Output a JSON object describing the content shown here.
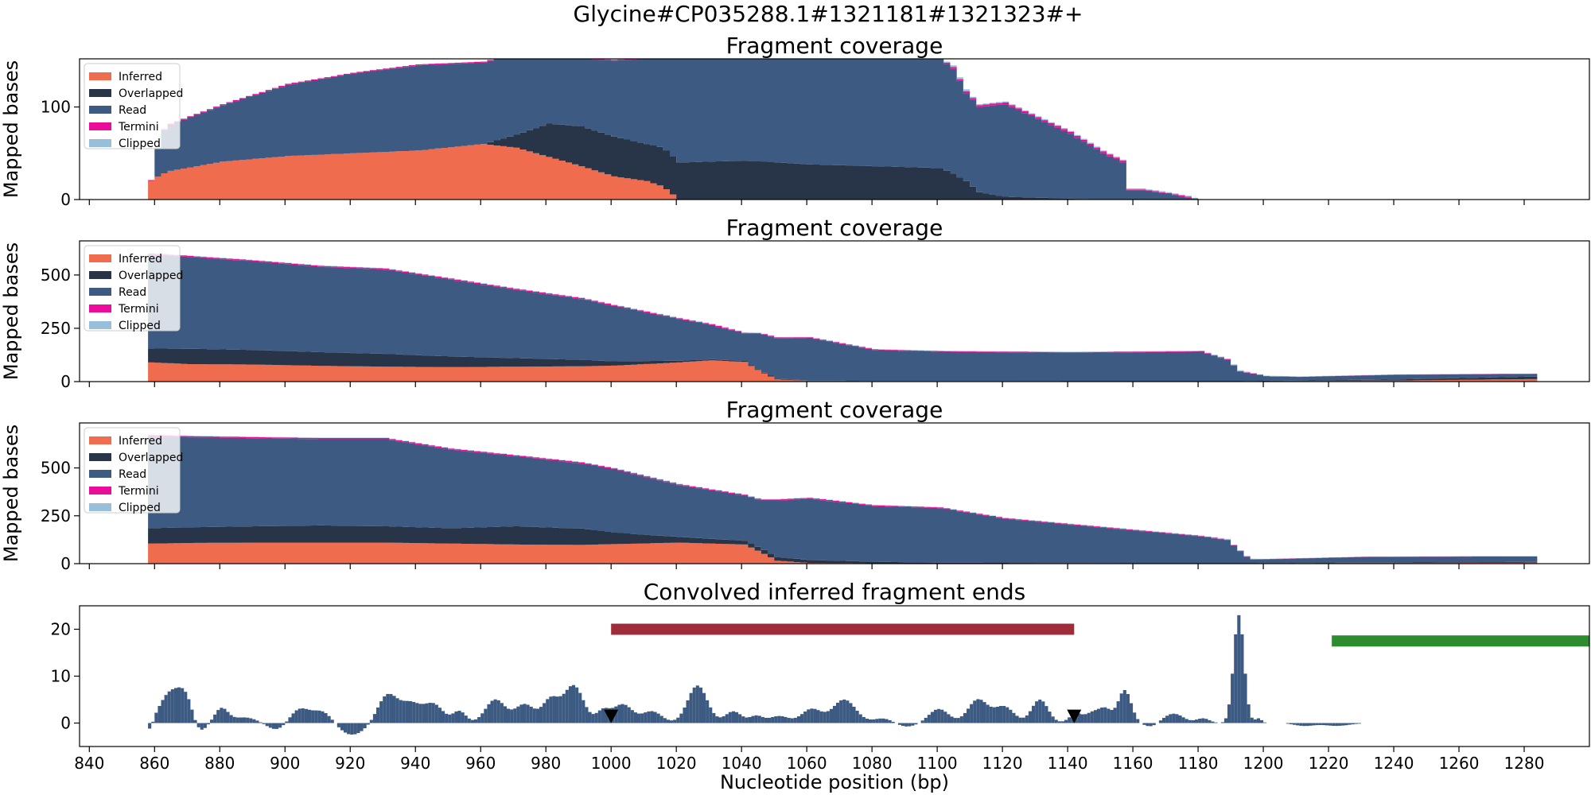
{
  "suptitle": "Glycine#CP035288.1#1321181#1321323#+",
  "colors": {
    "inferred": "#ef6c4f",
    "overlapped": "#283447",
    "read": "#3d5b82",
    "termini": "#ec0c9c",
    "clipped": "#98bfda",
    "convolved": "#3d5b82",
    "red_bar": "#a02c3a",
    "green_bar": "#2e8b2e",
    "marker": "#000000"
  },
  "chart_data": [
    {
      "type": "area",
      "title": "Fragment coverage",
      "xlabel": "",
      "ylabel": "Mapped bases",
      "xlim": [
        837,
        1300
      ],
      "ylim": [
        0,
        152
      ],
      "yticks": [
        "0",
        "100"
      ],
      "legend": {
        "position": "top-left",
        "entries": [
          "Inferred",
          "Overlapped",
          "Read",
          "Termini",
          "Clipped"
        ]
      },
      "x": [
        858,
        861,
        864,
        880,
        900,
        920,
        940,
        960,
        970,
        980,
        990,
        1000,
        1010,
        1015,
        1020,
        1040,
        1060,
        1080,
        1100,
        1104,
        1108,
        1112,
        1120,
        1130,
        1140,
        1150,
        1156,
        1158,
        1162,
        1170,
        1176,
        1180
      ],
      "series": [
        {
          "name": "Inferred",
          "values": [
            20,
            27,
            31,
            41,
            47,
            50,
            53,
            60,
            56,
            46,
            36,
            25,
            20,
            14,
            0,
            0,
            0,
            0,
            0,
            0,
            0,
            0,
            0,
            0,
            0,
            0,
            0,
            0,
            0,
            0,
            0,
            0
          ]
        },
        {
          "name": "Overlapped",
          "values": [
            0,
            0,
            0,
            0,
            0,
            0,
            0,
            0,
            14,
            36,
            43,
            43,
            40,
            42,
            40,
            42,
            38,
            36,
            34,
            28,
            20,
            8,
            3,
            2,
            1,
            0,
            0,
            0,
            0,
            0,
            0,
            0
          ]
        },
        {
          "name": "Read",
          "values": [
            0,
            45,
            50,
            61,
            77,
            86,
            92,
            88,
            87,
            70,
            73,
            82,
            92,
            98,
            112,
            112,
            116,
            118,
            118,
            113,
            95,
            92,
            100,
            85,
            70,
            50,
            40,
            10,
            10,
            6,
            2,
            0
          ]
        },
        {
          "name": "Termini",
          "values": [
            1,
            1,
            1,
            1,
            1,
            1,
            1,
            1,
            1,
            1,
            1,
            1,
            1,
            1,
            1,
            1,
            1,
            1,
            1,
            2,
            2,
            2,
            2,
            2,
            2,
            2,
            2,
            1,
            1,
            1,
            1,
            0
          ]
        },
        {
          "name": "Clipped",
          "values": [
            0,
            0,
            0,
            0,
            0,
            0,
            0,
            0,
            0,
            0,
            0,
            0,
            0,
            0,
            0,
            0,
            0,
            0,
            0,
            2,
            2,
            1,
            1,
            1,
            1,
            1,
            1,
            1,
            1,
            1,
            1,
            0
          ]
        }
      ]
    },
    {
      "type": "area",
      "title": "Fragment coverage",
      "xlabel": "",
      "ylabel": "Mapped bases",
      "xlim": [
        837,
        1300
      ],
      "ylim": [
        0,
        660
      ],
      "yticks": [
        "0",
        "250",
        "500"
      ],
      "legend": {
        "position": "top-left",
        "entries": [
          "Inferred",
          "Overlapped",
          "Read",
          "Termini",
          "Clipped"
        ]
      },
      "x": [
        858,
        870,
        890,
        910,
        930,
        950,
        970,
        990,
        1000,
        1020,
        1030,
        1040,
        1045,
        1050,
        1060,
        1080,
        1100,
        1140,
        1180,
        1188,
        1192,
        1200,
        1210,
        1240,
        1270,
        1284
      ],
      "series": [
        {
          "name": "Inferred",
          "values": [
            90,
            82,
            80,
            74,
            70,
            68,
            70,
            72,
            75,
            90,
            100,
            92,
            45,
            10,
            3,
            2,
            2,
            1,
            1,
            1,
            1,
            2,
            3,
            5,
            10,
            12
          ]
        },
        {
          "name": "Overlapped",
          "values": [
            65,
            72,
            68,
            64,
            60,
            50,
            40,
            30,
            20,
            8,
            5,
            5,
            4,
            4,
            2,
            1,
            1,
            1,
            1,
            1,
            1,
            2,
            2,
            5,
            10,
            12
          ]
        },
        {
          "name": "Read",
          "values": [
            440,
            430,
            415,
            400,
            395,
            360,
            320,
            285,
            260,
            195,
            160,
            128,
            175,
            190,
            200,
            145,
            137,
            133,
            138,
            100,
            45,
            20,
            17,
            22,
            15,
            13
          ]
        },
        {
          "name": "Termini",
          "values": [
            5,
            5,
            5,
            5,
            5,
            5,
            5,
            5,
            4,
            4,
            4,
            4,
            3,
            3,
            3,
            3,
            3,
            3,
            3,
            3,
            2,
            2,
            1,
            1,
            1,
            0
          ]
        },
        {
          "name": "Clipped",
          "values": [
            2,
            2,
            2,
            2,
            2,
            2,
            2,
            2,
            2,
            2,
            2,
            2,
            2,
            2,
            2,
            2,
            2,
            2,
            2,
            3,
            4,
            2,
            1,
            1,
            1,
            0
          ]
        }
      ]
    },
    {
      "type": "area",
      "title": "Fragment coverage",
      "xlabel": "",
      "ylabel": "Mapped bases",
      "xlim": [
        837,
        1300
      ],
      "ylim": [
        0,
        735
      ],
      "yticks": [
        "0",
        "250",
        "500"
      ],
      "legend": {
        "position": "top-left",
        "entries": [
          "Inferred",
          "Overlapped",
          "Read",
          "Termini",
          "Clipped"
        ]
      },
      "x": [
        858,
        870,
        890,
        910,
        930,
        950,
        970,
        990,
        1000,
        1020,
        1040,
        1045,
        1050,
        1060,
        1080,
        1100,
        1120,
        1140,
        1160,
        1180,
        1188,
        1195,
        1200,
        1230,
        1260,
        1284
      ],
      "series": [
        {
          "name": "Inferred",
          "values": [
            105,
            108,
            110,
            110,
            110,
            105,
            100,
            98,
            102,
            110,
            100,
            60,
            15,
            4,
            2,
            2,
            2,
            1,
            1,
            1,
            1,
            1,
            2,
            3,
            4,
            5
          ]
        },
        {
          "name": "Overlapped",
          "values": [
            80,
            82,
            85,
            90,
            85,
            80,
            95,
            85,
            60,
            30,
            20,
            20,
            20,
            15,
            8,
            3,
            2,
            2,
            1,
            1,
            1,
            1,
            1,
            2,
            3,
            5
          ]
        },
        {
          "name": "Read",
          "values": [
            480,
            470,
            460,
            450,
            455,
            410,
            365,
            340,
            330,
            270,
            235,
            250,
            295,
            320,
            290,
            285,
            230,
            200,
            170,
            140,
            120,
            20,
            20,
            30,
            30,
            28
          ]
        },
        {
          "name": "Termini",
          "values": [
            6,
            6,
            6,
            6,
            6,
            6,
            6,
            6,
            6,
            5,
            5,
            5,
            5,
            5,
            5,
            4,
            4,
            4,
            4,
            3,
            3,
            2,
            1,
            1,
            1,
            0
          ]
        },
        {
          "name": "Clipped",
          "values": [
            2,
            2,
            2,
            2,
            2,
            2,
            2,
            2,
            2,
            2,
            2,
            2,
            2,
            2,
            2,
            2,
            2,
            2,
            2,
            2,
            4,
            2,
            1,
            1,
            1,
            0
          ]
        }
      ]
    },
    {
      "type": "bar",
      "title": "Convolved inferred fragment ends",
      "xlabel": "Nucleotide position (bp)",
      "ylabel": "",
      "xlim": [
        837,
        1300
      ],
      "ylim": [
        -5,
        25
      ],
      "yticks": [
        "0",
        "10",
        "20"
      ],
      "xticks": [
        "840",
        "860",
        "880",
        "900",
        "920",
        "940",
        "960",
        "980",
        "1000",
        "1020",
        "1040",
        "1060",
        "1080",
        "1100",
        "1120",
        "1140",
        "1160",
        "1180",
        "1200",
        "1220",
        "1240",
        "1260",
        "1280"
      ],
      "peaks": [
        {
          "x": 858,
          "h": -2,
          "w": 1
        },
        {
          "x": 864,
          "h": 6,
          "w": 3
        },
        {
          "x": 869,
          "h": 5.5,
          "w": 2.5
        },
        {
          "x": 873,
          "h": -2.5,
          "w": 2
        },
        {
          "x": 880,
          "h": 3,
          "w": 2
        },
        {
          "x": 887,
          "h": 1.2,
          "w": 4
        },
        {
          "x": 897,
          "h": -1.5,
          "w": 3
        },
        {
          "x": 904,
          "h": 3,
          "w": 3
        },
        {
          "x": 911,
          "h": 2.5,
          "w": 3
        },
        {
          "x": 920,
          "h": -2.5,
          "w": 4
        },
        {
          "x": 931,
          "h": 6,
          "w": 3
        },
        {
          "x": 938,
          "h": 4,
          "w": 3
        },
        {
          "x": 945,
          "h": 4,
          "w": 3
        },
        {
          "x": 953,
          "h": 2.5,
          "w": 2
        },
        {
          "x": 964,
          "h": 5,
          "w": 3
        },
        {
          "x": 973,
          "h": 4,
          "w": 3
        },
        {
          "x": 981,
          "h": 5,
          "w": 2.5
        },
        {
          "x": 988,
          "h": 8,
          "w": 3
        },
        {
          "x": 997,
          "h": 2.5,
          "w": 2
        },
        {
          "x": 1003,
          "h": 4,
          "w": 3
        },
        {
          "x": 1012,
          "h": 2.5,
          "w": 3
        },
        {
          "x": 1026,
          "h": 8,
          "w": 3
        },
        {
          "x": 1037,
          "h": 2.5,
          "w": 2.5
        },
        {
          "x": 1044,
          "h": 1.5,
          "w": 2
        },
        {
          "x": 1051,
          "h": 1.5,
          "w": 3
        },
        {
          "x": 1061,
          "h": 3,
          "w": 3
        },
        {
          "x": 1071,
          "h": 5,
          "w": 3.5
        },
        {
          "x": 1083,
          "h": 1,
          "w": 3
        },
        {
          "x": 1090,
          "h": -0.8,
          "w": 3
        },
        {
          "x": 1100,
          "h": 3,
          "w": 3
        },
        {
          "x": 1112,
          "h": 5,
          "w": 3
        },
        {
          "x": 1120,
          "h": 3.5,
          "w": 3
        },
        {
          "x": 1131,
          "h": 5,
          "w": 2.5
        },
        {
          "x": 1142,
          "h": 2,
          "w": 2
        },
        {
          "x": 1147,
          "h": 2,
          "w": 2
        },
        {
          "x": 1151,
          "h": 3,
          "w": 2
        },
        {
          "x": 1157,
          "h": 7,
          "w": 2
        },
        {
          "x": 1165,
          "h": -0.8,
          "w": 2
        },
        {
          "x": 1172,
          "h": 2,
          "w": 3
        },
        {
          "x": 1181,
          "h": 1,
          "w": 2
        },
        {
          "x": 1192,
          "h": 23,
          "w": 1.6
        },
        {
          "x": 1198,
          "h": 1,
          "w": 1
        },
        {
          "x": 1212,
          "h": -0.6,
          "w": 3
        },
        {
          "x": 1222,
          "h": -0.6,
          "w": 4
        }
      ],
      "bars": [
        {
          "start": 1000,
          "end": 1142,
          "y": 20,
          "color": "red_bar"
        },
        {
          "start": 1221,
          "end": 1300,
          "y": 17.5,
          "color": "green_bar"
        }
      ],
      "markers": [
        {
          "x": 1000,
          "y": 1.5
        },
        {
          "x": 1142,
          "y": 1.5
        }
      ],
      "xrange_end": 1230
    }
  ]
}
